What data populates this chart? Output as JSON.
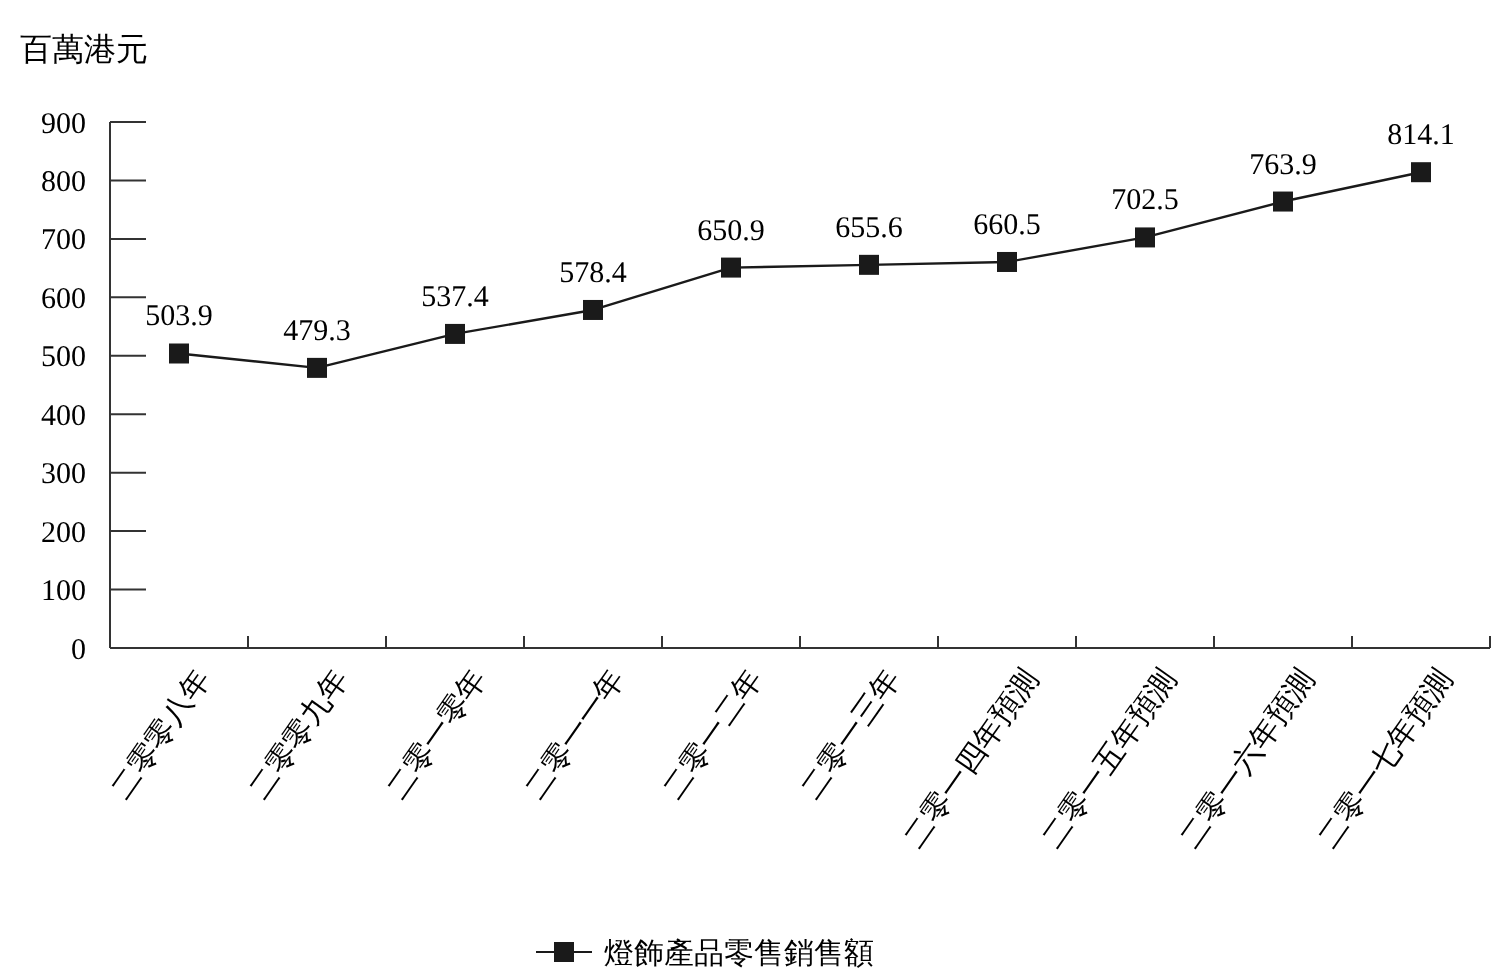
{
  "chart_data": {
    "type": "line",
    "ylabel": "百萬港元",
    "categories": [
      "二零零八年",
      "二零零九年",
      "二零一零年",
      "二零一一年",
      "二零一二年",
      "二零一三年",
      "二零一四年預測",
      "二零一五年預測",
      "二零一六年預測",
      "二零一七年預測"
    ],
    "series": [
      {
        "name": "燈飾產品零售銷售額",
        "color": "#1a1a1a",
        "values": [
          503.9,
          479.3,
          537.4,
          578.4,
          650.9,
          655.6,
          660.5,
          702.5,
          763.9,
          814.1
        ]
      }
    ],
    "ylim": [
      0,
      900
    ],
    "yticks": [
      0,
      100,
      200,
      300,
      400,
      500,
      600,
      700,
      800,
      900
    ],
    "data_labels": true,
    "grid": false,
    "legend": "bottom",
    "marker": "square",
    "line_style": "solid"
  }
}
